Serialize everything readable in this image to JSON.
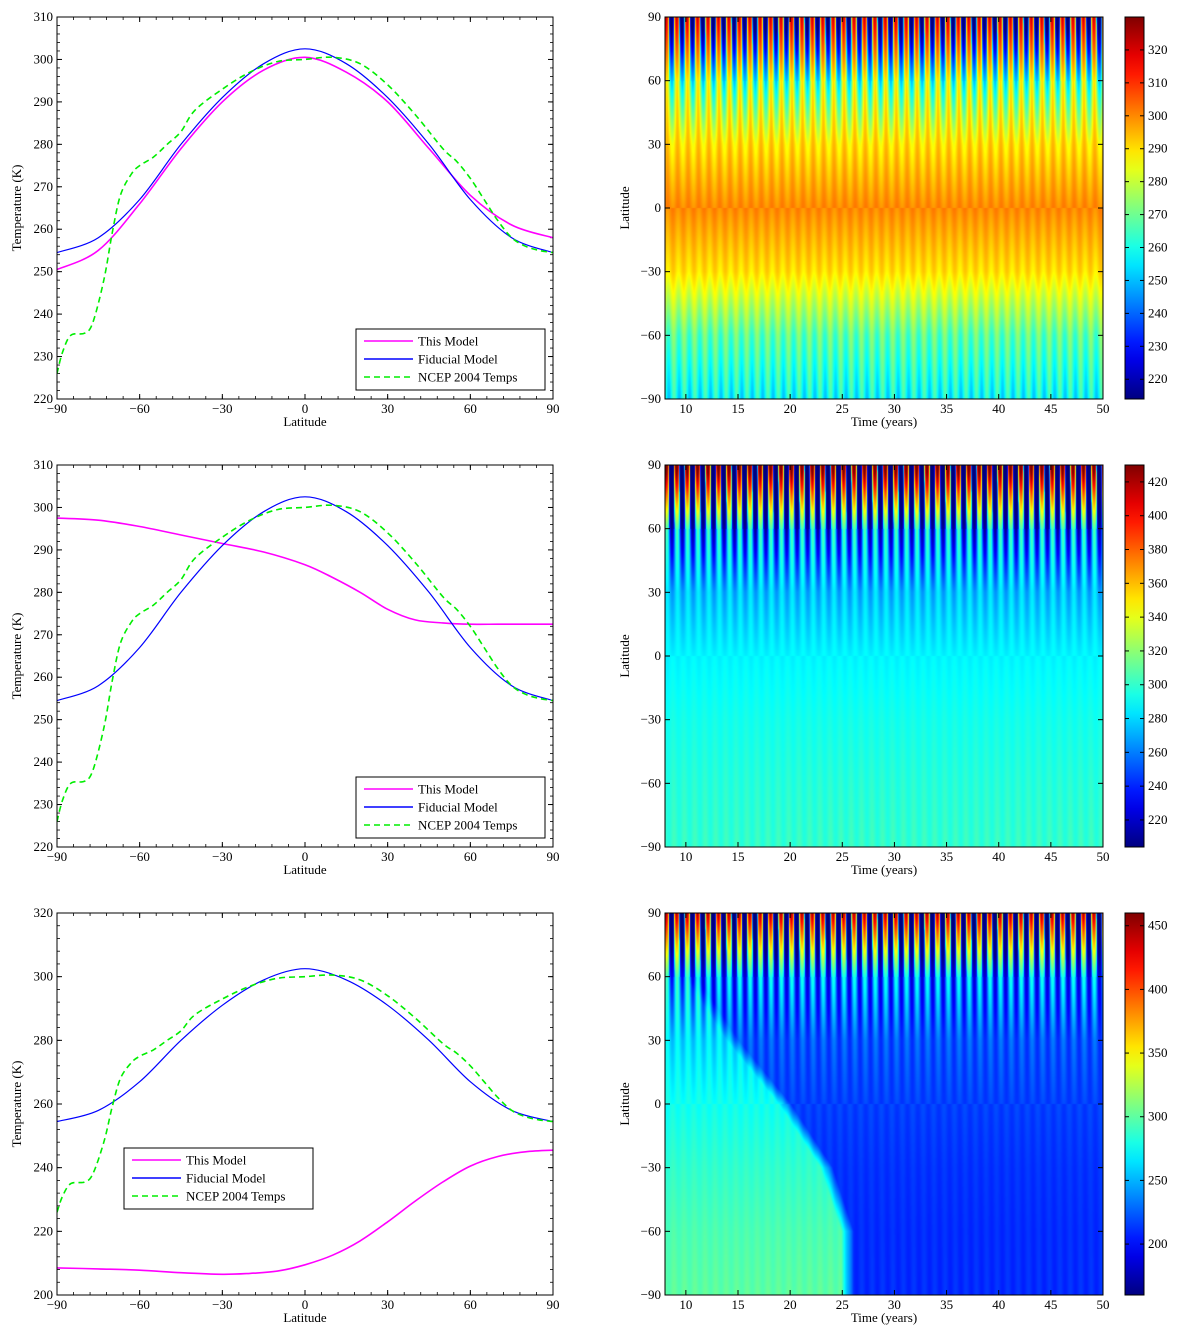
{
  "chart_data": [
    {
      "type": "line",
      "xlabel": "Latitude",
      "ylabel": "Temperature (K)",
      "xlim": [
        -90,
        90
      ],
      "ylim": [
        220,
        310
      ],
      "xticks": [
        -90,
        -60,
        -30,
        0,
        30,
        60,
        90
      ],
      "yticks": [
        220,
        230,
        240,
        250,
        260,
        270,
        280,
        290,
        300,
        310
      ],
      "legend_position": "bottom-right",
      "series": [
        {
          "name": "This Model",
          "color": "#ff00ff",
          "style": "solid",
          "x": [
            -90,
            -75,
            -60,
            -45,
            -30,
            -15,
            0,
            15,
            30,
            45,
            60,
            75,
            90
          ],
          "y": [
            250.5,
            255,
            266,
            279,
            290,
            297.5,
            300.5,
            297,
            290,
            279,
            268,
            261,
            258
          ]
        },
        {
          "name": "Fiducial Model",
          "color": "#0000ff",
          "style": "solid",
          "x": [
            -90,
            -75,
            -60,
            -45,
            -30,
            -15,
            0,
            15,
            30,
            45,
            60,
            75,
            90
          ],
          "y": [
            254.5,
            258,
            267,
            280,
            291,
            299,
            302.5,
            299,
            291,
            280,
            267,
            258,
            254.5
          ]
        },
        {
          "name": "NCEP 2004 Temps",
          "color": "#00ee00",
          "style": "dashed",
          "x": [
            -90,
            -88,
            -85,
            -80,
            -77,
            -73,
            -70,
            -67,
            -63,
            -60,
            -55,
            -50,
            -45,
            -40,
            -30,
            -20,
            -10,
            0,
            10,
            20,
            30,
            40,
            50,
            55,
            60,
            65,
            70,
            75,
            80,
            85,
            90
          ],
          "y": [
            226,
            231,
            235,
            235.5,
            238,
            248,
            259,
            268,
            273,
            275,
            277,
            280,
            283,
            288,
            293,
            297,
            299.5,
            300,
            300.5,
            299,
            294,
            287,
            279,
            276,
            272,
            267,
            262,
            258,
            256,
            255,
            254.5
          ]
        }
      ]
    },
    {
      "type": "heatmap",
      "xlabel": "Time (years)",
      "ylabel": "Latitude",
      "xlim": [
        8,
        50
      ],
      "ylim": [
        -90,
        90
      ],
      "xticks": [
        10,
        15,
        20,
        25,
        30,
        35,
        40,
        45,
        50
      ],
      "yticks": [
        -90,
        -60,
        -30,
        0,
        30,
        60,
        90
      ],
      "colorbar": {
        "min": 214,
        "max": 330,
        "ticks": [
          220,
          230,
          240,
          250,
          260,
          270,
          280,
          290,
          300,
          310,
          320
        ]
      },
      "colormap": "jet",
      "cycles": 42,
      "latitude_profile_mean": {
        "lat": [
          -90,
          -60,
          -30,
          0,
          30,
          60,
          90
        ],
        "temp": [
          258,
          268,
          290,
          300,
          290,
          270,
          262
        ]
      },
      "seasonal_amplitude": {
        "lat": [
          -90,
          -60,
          -30,
          0,
          30,
          60,
          90
        ],
        "amp": [
          8,
          6,
          3,
          2,
          5,
          20,
          60
        ]
      }
    },
    {
      "type": "line",
      "xlabel": "Latitude",
      "ylabel": "Temperature (K)",
      "xlim": [
        -90,
        90
      ],
      "ylim": [
        220,
        310
      ],
      "xticks": [
        -90,
        -60,
        -30,
        0,
        30,
        60,
        90
      ],
      "yticks": [
        220,
        230,
        240,
        250,
        260,
        270,
        280,
        290,
        300,
        310
      ],
      "legend_position": "bottom-right",
      "series": [
        {
          "name": "This Model",
          "color": "#ff00ff",
          "style": "solid",
          "x": [
            -90,
            -75,
            -60,
            -45,
            -30,
            -15,
            0,
            10,
            20,
            30,
            40,
            50,
            60,
            70,
            80,
            90
          ],
          "y": [
            297.5,
            297,
            295.5,
            293.5,
            291.5,
            289.5,
            286.5,
            283.5,
            280,
            276,
            273.5,
            272.8,
            272.5,
            272.5,
            272.5,
            272.5
          ]
        },
        {
          "name": "Fiducial Model",
          "color": "#0000ff",
          "style": "solid",
          "x": [
            -90,
            -75,
            -60,
            -45,
            -30,
            -15,
            0,
            15,
            30,
            45,
            60,
            75,
            90
          ],
          "y": [
            254.5,
            258,
            267,
            280,
            291,
            299,
            302.5,
            299,
            291,
            280,
            267,
            258,
            254.5
          ]
        },
        {
          "name": "NCEP 2004 Temps",
          "color": "#00ee00",
          "style": "dashed",
          "x": [
            -90,
            -88,
            -85,
            -80,
            -77,
            -73,
            -70,
            -67,
            -63,
            -60,
            -55,
            -50,
            -45,
            -40,
            -30,
            -20,
            -10,
            0,
            10,
            20,
            30,
            40,
            50,
            55,
            60,
            65,
            70,
            75,
            80,
            85,
            90
          ],
          "y": [
            226,
            231,
            235,
            235.5,
            238,
            248,
            259,
            268,
            273,
            275,
            277,
            280,
            283,
            288,
            293,
            297,
            299.5,
            300,
            300.5,
            299,
            294,
            287,
            279,
            276,
            272,
            267,
            262,
            258,
            256,
            255,
            254.5
          ]
        }
      ]
    },
    {
      "type": "heatmap",
      "xlabel": "Time (years)",
      "ylabel": "Latitude",
      "xlim": [
        8,
        50
      ],
      "ylim": [
        -90,
        90
      ],
      "xticks": [
        10,
        15,
        20,
        25,
        30,
        35,
        40,
        45,
        50
      ],
      "yticks": [
        -90,
        -60,
        -30,
        0,
        30,
        60,
        90
      ],
      "colorbar": {
        "min": 204,
        "max": 430,
        "ticks": [
          220,
          240,
          260,
          280,
          300,
          320,
          340,
          360,
          380,
          400,
          420
        ]
      },
      "colormap": "jet",
      "cycles": 42,
      "latitude_profile_mean": {
        "lat": [
          -90,
          -60,
          -30,
          0,
          30,
          60,
          90
        ],
        "temp": [
          300,
          297,
          293,
          287,
          275,
          258,
          300
        ]
      },
      "seasonal_amplitude": {
        "lat": [
          -90,
          -60,
          -30,
          0,
          30,
          60,
          90
        ],
        "amp": [
          4,
          3,
          2,
          2,
          10,
          50,
          150
        ]
      }
    },
    {
      "type": "line",
      "xlabel": "Latitude",
      "ylabel": "Temperature (K)",
      "xlim": [
        -90,
        90
      ],
      "ylim": [
        200,
        320
      ],
      "xticks": [
        -90,
        -60,
        -30,
        0,
        30,
        60,
        90
      ],
      "yticks": [
        200,
        220,
        240,
        260,
        280,
        300,
        320
      ],
      "legend_position": "center-left",
      "series": [
        {
          "name": "This Model",
          "color": "#ff00ff",
          "style": "solid",
          "x": [
            -90,
            -75,
            -60,
            -45,
            -30,
            -20,
            -10,
            0,
            10,
            20,
            30,
            40,
            50,
            60,
            70,
            80,
            90
          ],
          "y": [
            208.5,
            208.2,
            207.8,
            207,
            206.5,
            206.8,
            207.5,
            209.5,
            212.5,
            217,
            223,
            229.5,
            235.5,
            240.5,
            243.5,
            245,
            245.5
          ]
        },
        {
          "name": "Fiducial Model",
          "color": "#0000ff",
          "style": "solid",
          "x": [
            -90,
            -75,
            -60,
            -45,
            -30,
            -15,
            0,
            15,
            30,
            45,
            60,
            75,
            90
          ],
          "y": [
            254.5,
            258,
            267,
            280,
            291,
            299,
            302.5,
            299,
            291,
            280,
            267,
            258,
            254.5
          ]
        },
        {
          "name": "NCEP 2004 Temps",
          "color": "#00ee00",
          "style": "dashed",
          "x": [
            -90,
            -88,
            -85,
            -80,
            -77,
            -73,
            -70,
            -67,
            -63,
            -60,
            -55,
            -50,
            -45,
            -40,
            -30,
            -20,
            -10,
            0,
            10,
            20,
            30,
            40,
            50,
            55,
            60,
            65,
            70,
            75,
            80,
            85,
            90
          ],
          "y": [
            226,
            231,
            235,
            235.5,
            238,
            248,
            259,
            268,
            273,
            275,
            277,
            280,
            283,
            288,
            293,
            297,
            299.5,
            300,
            300.5,
            299,
            294,
            287,
            279,
            276,
            272,
            267,
            262,
            258,
            256,
            255,
            254.5
          ]
        }
      ]
    },
    {
      "type": "heatmap",
      "xlabel": "Time (years)",
      "ylabel": "Latitude",
      "xlim": [
        8,
        50
      ],
      "ylim": [
        -90,
        90
      ],
      "xticks": [
        10,
        15,
        20,
        25,
        30,
        35,
        40,
        45,
        50
      ],
      "yticks": [
        -90,
        -60,
        -30,
        0,
        30,
        60,
        90
      ],
      "colorbar": {
        "min": 160,
        "max": 460,
        "ticks": [
          200,
          250,
          300,
          350,
          400,
          450
        ]
      },
      "colormap": "jet",
      "cycles": 42,
      "latitude_profile_mean": {
        "lat": [
          -90,
          -60,
          -30,
          0,
          30,
          60,
          90
        ],
        "temp": [
          300,
          295,
          287,
          277,
          263,
          245,
          280
        ]
      },
      "latitude_profile_frozen": {
        "lat": [
          -90,
          -60,
          -30,
          0,
          30,
          60,
          90
        ],
        "temp": [
          210,
          210,
          212,
          216,
          222,
          232,
          280
        ]
      },
      "freeze_onset": {
        "lat": [
          -90,
          -60,
          -30,
          0,
          30,
          60,
          90
        ],
        "year": [
          25.5,
          25.5,
          23.5,
          19.5,
          14.5,
          10.5,
          8
        ]
      },
      "seasonal_amplitude": {
        "lat": [
          -90,
          -60,
          -30,
          0,
          30,
          60,
          90
        ],
        "amp": [
          4,
          3,
          3,
          4,
          12,
          50,
          170
        ]
      }
    }
  ]
}
